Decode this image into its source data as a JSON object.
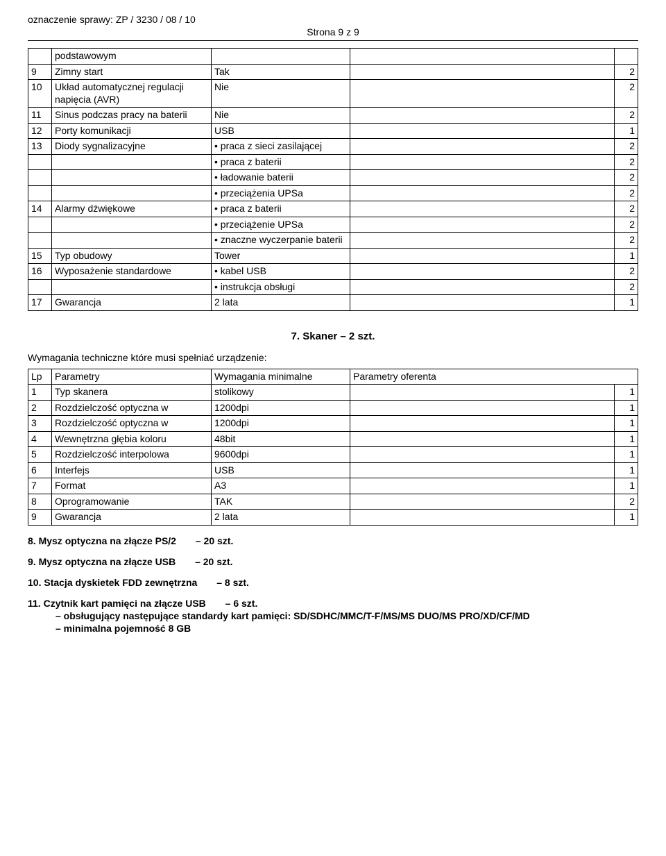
{
  "header": {
    "case_label": "oznaczenie sprawy:  ZP / 3230 / 08 / 10",
    "page_marker": "Strona 9 z 9"
  },
  "table1": {
    "rows": [
      {
        "num": "",
        "name": "podstawowym",
        "req": "",
        "off": "",
        "pt": ""
      },
      {
        "num": "9",
        "name": "Zimny start",
        "req": "Tak",
        "off": "",
        "pt": "2"
      },
      {
        "num": "10",
        "name": "Układ automatycznej regulacji napięcia (AVR)",
        "req": "Nie",
        "off": "",
        "pt": "2"
      },
      {
        "num": "11",
        "name": "Sinus podczas pracy na baterii",
        "req": "Nie",
        "off": "",
        "pt": "2"
      },
      {
        "num": "12",
        "name": "Porty komunikacji",
        "req": "USB",
        "off": "",
        "pt": "1"
      },
      {
        "num": "13",
        "name": "Diody sygnalizacyjne",
        "req": "•  praca z sieci zasilającej",
        "off": "",
        "pt": "2"
      },
      {
        "num": "",
        "name": "",
        "req": "•  praca z baterii",
        "off": "",
        "pt": "2"
      },
      {
        "num": "",
        "name": "",
        "req": "•  ładowanie baterii",
        "off": "",
        "pt": "2"
      },
      {
        "num": "",
        "name": "",
        "req": "•  przeciążenia UPSa",
        "off": "",
        "pt": "2"
      },
      {
        "num": "14",
        "name": "Alarmy dźwiękowe",
        "req": "•  praca z baterii",
        "off": "",
        "pt": "2"
      },
      {
        "num": "",
        "name": "",
        "req": "•  przeciążenie UPSa",
        "off": "",
        "pt": "2"
      },
      {
        "num": "",
        "name": "",
        "req": "•  znaczne wyczerpanie baterii",
        "off": "",
        "pt": "2"
      },
      {
        "num": "15",
        "name": "Typ obudowy",
        "req": "Tower",
        "off": "",
        "pt": "1"
      },
      {
        "num": "16",
        "name": "Wyposażenie standardowe",
        "req": "•  kabel USB",
        "off": "",
        "pt": "2"
      },
      {
        "num": "",
        "name": "",
        "req": "•  instrukcja obsługi",
        "off": "",
        "pt": "2"
      },
      {
        "num": "17",
        "name": "Gwarancja",
        "req": "2 lata",
        "off": "",
        "pt": "1"
      }
    ]
  },
  "section7": {
    "title": "7.  Skaner – 2 szt.",
    "intro": "Wymagania techniczne które musi spełniać urządzenie:",
    "header": {
      "lp": "Lp",
      "param": "Parametry",
      "req": "Wymagania minimalne",
      "off": "Parametry oferenta"
    },
    "rows": [
      {
        "num": "1",
        "name": "Typ skanera",
        "req": "stolikowy",
        "off": "",
        "pt": "1"
      },
      {
        "num": "2",
        "name": "Rozdzielczość optyczna w",
        "req": "1200dpi",
        "off": "",
        "pt": "1"
      },
      {
        "num": "3",
        "name": "Rozdzielczość optyczna w",
        "req": "1200dpi",
        "off": "",
        "pt": "1"
      },
      {
        "num": "4",
        "name": "Wewnętrzna głębia koloru",
        "req": "48bit",
        "off": "",
        "pt": "1"
      },
      {
        "num": "5",
        "name": "Rozdzielczość interpolowa",
        "req": "9600dpi",
        "off": "",
        "pt": "1"
      },
      {
        "num": "6",
        "name": "Interfejs",
        "req": "USB",
        "off": "",
        "pt": "1"
      },
      {
        "num": "7",
        "name": "Format",
        "req": "A3",
        "off": "",
        "pt": "1"
      },
      {
        "num": "8",
        "name": "Oprogramowanie",
        "req": "TAK",
        "off": "",
        "pt": "2"
      },
      {
        "num": "9",
        "name": "Gwarancja",
        "req": "2 lata",
        "off": "",
        "pt": "1"
      }
    ]
  },
  "items": {
    "i8": {
      "label": "8.  Mysz optyczna na złącze PS/2",
      "qty": "– 20 szt."
    },
    "i9": {
      "label": "9.  Mysz optyczna na złącze USB",
      "qty": "– 20 szt."
    },
    "i10": {
      "label": "10.  Stacja dyskietek FDD zewnętrzna",
      "qty": "– 8 szt."
    },
    "i11": {
      "label": "11.  Czytnik kart pamięci na złącze USB",
      "qty": "– 6 szt."
    },
    "sub1": "–  obsługujący następujące standardy kart pamięci: SD/SDHC/MMC/T-F/MS/MS DUO/MS PRO/XD/CF/MD",
    "sub2": "–  minimalna pojemność 8 GB"
  }
}
